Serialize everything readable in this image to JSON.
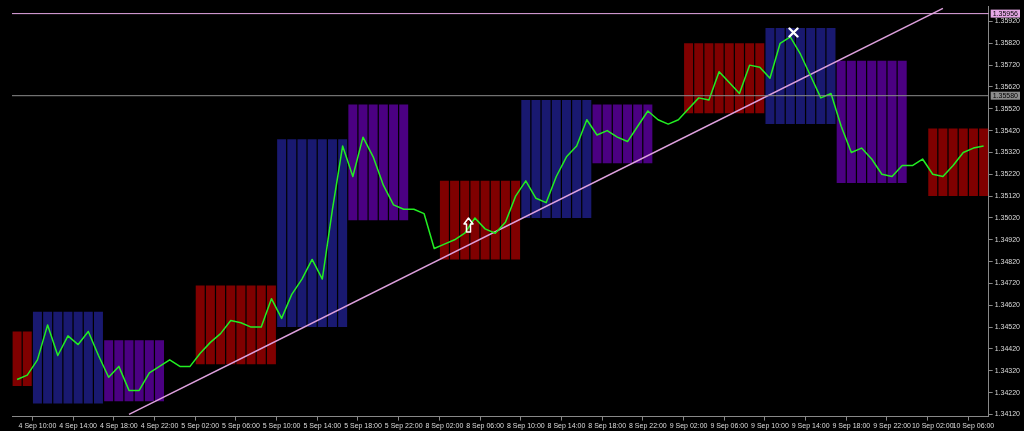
{
  "chart_data": {
    "type": "line",
    "categories": [
      null,
      null,
      "4 Sep 10:00",
      null,
      null,
      null,
      "4 Sep 14:00",
      null,
      null,
      null,
      "4 Sep 18:00",
      null,
      null,
      null,
      "4 Sep 22:00",
      null,
      null,
      null,
      "5 Sep 02:00",
      null,
      null,
      null,
      "5 Sep 06:00",
      null,
      null,
      null,
      "5 Sep 10:00",
      null,
      null,
      null,
      "5 Sep 14:00",
      null,
      null,
      null,
      "5 Sep 18:00",
      null,
      null,
      null,
      "5 Sep 22:00",
      null,
      null,
      null,
      "8 Sep 02:00",
      null,
      null,
      null,
      "8 Sep 06:00",
      null,
      null,
      null,
      "8 Sep 10:00",
      null,
      null,
      null,
      "8 Sep 14:00",
      null,
      null,
      null,
      "8 Sep 18:00",
      null,
      null,
      null,
      "8 Sep 22:00",
      null,
      null,
      null,
      "9 Sep 02:00",
      null,
      null,
      null,
      "9 Sep 06:00",
      null,
      null,
      null,
      "9 Sep 10:00",
      null,
      null,
      null,
      "9 Sep 14:00",
      null,
      null,
      null,
      "9 Sep 18:00",
      null,
      null,
      null,
      "9 Sep 22:00",
      null,
      null,
      null,
      "10 Sep 02:00",
      null,
      null,
      null,
      "10 Sep 06:00",
      null
    ],
    "series": [
      {
        "type": "bar",
        "color": "#800000",
        "base": [
          1.3425,
          1.3425,
          null,
          null,
          null,
          null,
          null,
          null,
          null,
          null,
          null,
          null,
          null,
          null,
          null,
          null,
          null,
          null,
          1.3435,
          1.3435,
          1.3435,
          1.3435,
          1.3435,
          1.3435,
          1.3435,
          1.3435,
          null,
          null,
          null,
          null,
          null,
          null,
          null,
          null,
          null,
          null,
          null,
          null,
          null,
          null,
          null,
          null,
          1.3483,
          1.3483,
          1.3483,
          1.3483,
          1.3483,
          1.3483,
          1.3483,
          1.3483,
          null,
          null,
          null,
          null,
          null,
          null,
          null,
          null,
          null,
          null,
          null,
          null,
          null,
          null,
          null,
          null,
          1.355,
          1.355,
          1.355,
          1.355,
          1.355,
          1.355,
          1.355,
          1.355,
          null,
          null,
          null,
          null,
          null,
          null,
          null,
          null,
          null,
          null,
          null,
          null,
          null,
          null,
          null,
          null,
          1.3512,
          1.3512,
          1.3512,
          1.3512,
          1.3512,
          1.3512
        ],
        "values": [
          0.0025,
          0.0025,
          null,
          null,
          null,
          null,
          null,
          null,
          null,
          null,
          null,
          null,
          null,
          null,
          null,
          null,
          null,
          null,
          0.0036,
          0.0036,
          0.0036,
          0.0036,
          0.0036,
          0.0036,
          0.0036,
          0.0036,
          null,
          null,
          null,
          null,
          null,
          null,
          null,
          null,
          null,
          null,
          null,
          null,
          null,
          null,
          null,
          null,
          0.0036,
          0.0036,
          0.0036,
          0.0036,
          0.0036,
          0.0036,
          0.0036,
          0.0036,
          null,
          null,
          null,
          null,
          null,
          null,
          null,
          null,
          null,
          null,
          null,
          null,
          null,
          null,
          null,
          null,
          0.0032,
          0.0032,
          0.0032,
          0.0032,
          0.0032,
          0.0032,
          0.0032,
          0.0032,
          null,
          null,
          null,
          null,
          null,
          null,
          null,
          null,
          null,
          null,
          null,
          null,
          null,
          null,
          null,
          null,
          0.0031,
          0.0031,
          0.0031,
          0.0031,
          0.0031,
          0.0031
        ]
      },
      {
        "type": "bar",
        "color": "#191970",
        "base": [
          null,
          null,
          1.3417,
          1.3417,
          1.3417,
          1.3417,
          1.3417,
          1.3417,
          1.3417,
          null,
          null,
          null,
          null,
          null,
          null,
          null,
          null,
          null,
          null,
          null,
          null,
          null,
          null,
          null,
          null,
          null,
          1.3452,
          1.3452,
          1.3452,
          1.3452,
          1.3452,
          1.3452,
          1.3452,
          null,
          null,
          null,
          null,
          null,
          null,
          null,
          null,
          null,
          null,
          null,
          null,
          null,
          null,
          null,
          null,
          null,
          1.3502,
          1.3502,
          1.3502,
          1.3502,
          1.3502,
          1.3502,
          1.3502,
          null,
          null,
          null,
          null,
          null,
          null,
          null,
          null,
          null,
          null,
          null,
          null,
          null,
          null,
          null,
          null,
          null,
          1.3545,
          1.3545,
          1.3545,
          1.3545,
          1.3545,
          1.3545,
          1.3545,
          null,
          null,
          null,
          null,
          null,
          null,
          null,
          null,
          null,
          null,
          null,
          null,
          null,
          null,
          null
        ],
        "values": [
          null,
          null,
          0.0042,
          0.0042,
          0.0042,
          0.0042,
          0.0042,
          0.0042,
          0.0042,
          null,
          null,
          null,
          null,
          null,
          null,
          null,
          null,
          null,
          null,
          null,
          null,
          null,
          null,
          null,
          null,
          null,
          0.0086,
          0.0086,
          0.0086,
          0.0086,
          0.0086,
          0.0086,
          0.0086,
          null,
          null,
          null,
          null,
          null,
          null,
          null,
          null,
          null,
          null,
          null,
          null,
          null,
          null,
          null,
          null,
          null,
          0.0054,
          0.0054,
          0.0054,
          0.0054,
          0.0054,
          0.0054,
          0.0054,
          null,
          null,
          null,
          null,
          null,
          null,
          null,
          null,
          null,
          null,
          null,
          null,
          null,
          null,
          null,
          null,
          null,
          0.0044,
          0.0044,
          0.0044,
          0.0044,
          0.0044,
          0.0044,
          0.0044,
          null,
          null,
          null,
          null,
          null,
          null,
          null,
          null,
          null,
          null,
          null,
          null,
          null,
          null,
          null
        ]
      },
      {
        "type": "bar",
        "color": "#4b0082",
        "base": [
          null,
          null,
          null,
          null,
          null,
          null,
          null,
          null,
          null,
          1.3418,
          1.3418,
          1.3418,
          1.3418,
          1.3418,
          1.3418,
          null,
          null,
          null,
          null,
          null,
          null,
          null,
          null,
          null,
          null,
          null,
          null,
          null,
          null,
          null,
          null,
          null,
          null,
          1.3501,
          1.3501,
          1.3501,
          1.3501,
          1.3501,
          1.3501,
          null,
          null,
          null,
          null,
          null,
          null,
          null,
          null,
          null,
          null,
          null,
          null,
          null,
          null,
          null,
          null,
          null,
          null,
          1.3527,
          1.3527,
          1.3527,
          1.3527,
          1.3527,
          1.3527,
          null,
          null,
          null,
          null,
          null,
          null,
          null,
          null,
          null,
          null,
          null,
          null,
          null,
          null,
          null,
          null,
          null,
          null,
          1.3518,
          1.3518,
          1.3518,
          1.3518,
          1.3518,
          1.3518,
          1.3518,
          null,
          null,
          null,
          null,
          null,
          null,
          null,
          null
        ],
        "values": [
          null,
          null,
          null,
          null,
          null,
          null,
          null,
          null,
          null,
          0.0028,
          0.0028,
          0.0028,
          0.0028,
          0.0028,
          0.0028,
          null,
          null,
          null,
          null,
          null,
          null,
          null,
          null,
          null,
          null,
          null,
          null,
          null,
          null,
          null,
          null,
          null,
          null,
          0.0053,
          0.0053,
          0.0053,
          0.0053,
          0.0053,
          0.0053,
          null,
          null,
          null,
          null,
          null,
          null,
          null,
          null,
          null,
          null,
          null,
          null,
          null,
          null,
          null,
          null,
          null,
          null,
          0.0027,
          0.0027,
          0.0027,
          0.0027,
          0.0027,
          0.0027,
          null,
          null,
          null,
          null,
          null,
          null,
          null,
          null,
          null,
          null,
          null,
          null,
          null,
          null,
          null,
          null,
          null,
          null,
          0.0056,
          0.0056,
          0.0056,
          0.0056,
          0.0056,
          0.0056,
          0.0056,
          null,
          null,
          null,
          null,
          null,
          null,
          null,
          null
        ]
      },
      {
        "color": "#22ee22",
        "values": [
          1.3428,
          1.343,
          1.3437,
          1.3453,
          1.3439,
          1.3448,
          1.3444,
          1.345,
          1.3439,
          1.3429,
          1.3434,
          1.3423,
          1.3423,
          1.3431,
          1.3434,
          1.3437,
          1.3434,
          1.3434,
          1.344,
          1.3445,
          1.3449,
          1.3455,
          1.3454,
          1.3452,
          1.3452,
          1.3465,
          1.3456,
          1.3467,
          1.3474,
          1.3483,
          1.3474,
          1.3506,
          1.3535,
          1.3521,
          1.3539,
          1.353,
          1.3517,
          1.3508,
          1.3506,
          1.3506,
          1.3504,
          1.3488,
          1.349,
          1.3492,
          1.3495,
          1.3502,
          1.3497,
          1.3495,
          1.35,
          1.3512,
          1.3519,
          1.3511,
          1.3509,
          1.3521,
          1.353,
          1.3535,
          1.3547,
          1.354,
          1.3542,
          1.3539,
          1.3537,
          1.3544,
          1.3551,
          1.3547,
          1.3545,
          1.3547,
          1.3552,
          1.3557,
          1.3556,
          1.3569,
          1.3564,
          1.3559,
          1.3572,
          1.3571,
          1.3566,
          1.3582,
          1.3585,
          1.3577,
          1.3567,
          1.3557,
          1.3559,
          1.3544,
          1.3532,
          1.3534,
          1.3529,
          1.3522,
          1.3521,
          1.3526,
          1.3526,
          1.3529,
          1.3522,
          1.3521,
          1.3526,
          1.3532,
          1.3534,
          1.3535
        ]
      },
      {
        "type": "line",
        "color": "#dda0dd",
        "values": [
          null,
          null,
          null,
          null,
          null,
          null,
          null,
          null,
          null,
          null,
          null,
          1.3412,
          null,
          null,
          null,
          null,
          null,
          null,
          null,
          null,
          null,
          null,
          null,
          null,
          null,
          null,
          null,
          null,
          null,
          null,
          null,
          null,
          null,
          null,
          null,
          null,
          null,
          null,
          null,
          null,
          null,
          null,
          null,
          null,
          null,
          null,
          null,
          null,
          null,
          null,
          null,
          null,
          null,
          null,
          null,
          null,
          null,
          null,
          null,
          null,
          null,
          null,
          null,
          null,
          null,
          null,
          null,
          null,
          null,
          null,
          null,
          null,
          null,
          null,
          null,
          null,
          null,
          null,
          null,
          null,
          null,
          null,
          null,
          null,
          null,
          null,
          null,
          null,
          null,
          null,
          null,
          1.3598,
          null,
          null,
          null,
          null
        ]
      }
    ],
    "ylim": [
      1.3411,
      1.3599
    ],
    "yticks": [
      {
        "value": 1.3412,
        "label": "1.34120"
      },
      {
        "value": 1.3422,
        "label": "1.34220"
      },
      {
        "value": 1.3432,
        "label": "1.34320"
      },
      {
        "value": 1.3442,
        "label": "1.34420"
      },
      {
        "value": 1.3452,
        "label": "1.34520"
      },
      {
        "value": 1.3462,
        "label": "1.34620"
      },
      {
        "value": 1.3472,
        "label": "1.34720"
      },
      {
        "value": 1.3482,
        "label": "1.34820"
      },
      {
        "value": 1.3492,
        "label": "1.34920"
      },
      {
        "value": 1.3502,
        "label": "1.35020"
      },
      {
        "value": 1.3512,
        "label": "1.35120"
      },
      {
        "value": 1.3522,
        "label": "1.35220"
      },
      {
        "value": 1.3532,
        "label": "1.35320"
      },
      {
        "value": 1.3542,
        "label": "1.35420"
      },
      {
        "value": 1.3552,
        "label": "1.35520"
      },
      {
        "value": 1.3562,
        "label": "1.35620"
      },
      {
        "value": 1.3572,
        "label": "1.35720"
      },
      {
        "value": 1.3582,
        "label": "1.35820"
      },
      {
        "value": 1.3592,
        "label": "1.35920"
      }
    ],
    "ref_lines": [
      {
        "axis": "y",
        "value": 1.35956,
        "label": "1.35956",
        "color": "#e6a8e6"
      },
      {
        "axis": "y",
        "value": 1.3558,
        "label": "1.35580",
        "color": "#8c8c8c"
      }
    ],
    "grid": false,
    "legend": false,
    "marker": "none"
  }
}
